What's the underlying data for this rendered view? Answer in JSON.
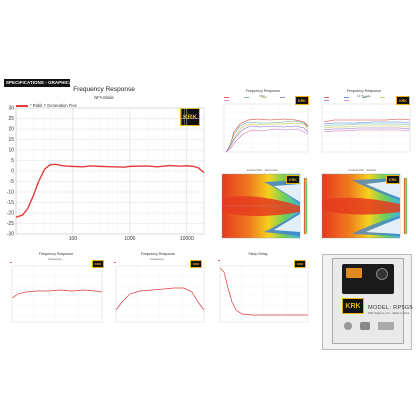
{
  "header": {
    "section_label": "SPECIFICATIONS - GRAPHICAL"
  },
  "brand": {
    "logo_text": "KRK",
    "accent": "#e7b515"
  },
  "main": {
    "title": "Frequency Response",
    "subtitle": "NFA Mode",
    "legend_label": "* Rokit 7 Generation Five"
  },
  "top_right_charts": [
    {
      "title": "Frequency Response",
      "subtitle": "CNA..."
    },
    {
      "title": "Frequency Response",
      "subtitle": "LF Tweaks"
    }
  ],
  "spectrograms": [
    {
      "title": "Contour Plot - Horizontal"
    },
    {
      "title": "Contour Plot - Vertical"
    }
  ],
  "bottom_charts": [
    {
      "title": "Frequency Response",
      "subtitle": "Frequency..."
    },
    {
      "title": "Frequency Response",
      "subtitle": "Frequency..."
    },
    {
      "title": "Sleep Delay"
    }
  ],
  "speaker": {
    "model_text": "MODEL: RP5G5",
    "model_sub": "KRK Systems, LLC - Made in China"
  },
  "colors": {
    "series": "#e03c3c",
    "grid": "#d9d9d9",
    "axis": "#333333"
  },
  "chart_data": [
    {
      "type": "line",
      "title": "Frequency Response",
      "subtitle": "NFA Mode",
      "xlabel": "",
      "ylabel": "",
      "xscale": "log",
      "xlim": [
        10,
        20000
      ],
      "ylim": [
        -30,
        30
      ],
      "yticks": [
        30,
        25,
        20,
        15,
        10,
        5,
        0,
        -5,
        -10,
        -15,
        -20,
        -25,
        -30
      ],
      "xtick_labels": [
        "100",
        "1000",
        "10000"
      ],
      "grid": true,
      "legend": "top-left",
      "series": [
        {
          "name": "* Rokit 7 Generation Five",
          "x": [
            10,
            13,
            16,
            20,
            25,
            32,
            40,
            50,
            63,
            80,
            100,
            150,
            200,
            300,
            500,
            800,
            1000,
            2000,
            3000,
            5000,
            8000,
            10000,
            13000,
            16000,
            20000
          ],
          "y": [
            -22,
            -21,
            -18,
            -12,
            -5,
            1,
            3,
            3.2,
            2.6,
            2.3,
            2.2,
            2.0,
            2.4,
            2.2,
            2.0,
            1.8,
            2.2,
            2.4,
            2.0,
            2.6,
            2.3,
            2.5,
            2.2,
            1.5,
            -0.8
          ]
        }
      ]
    }
  ]
}
